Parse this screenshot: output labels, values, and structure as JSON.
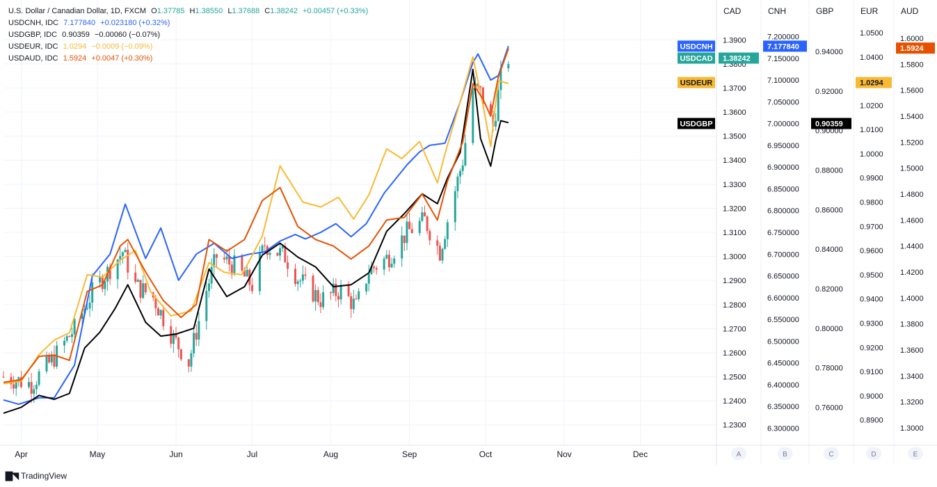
{
  "legend": {
    "main": {
      "symbol": "U.S. Dollar / Canadian Dollar, 1D, FXCM",
      "o_label": "O",
      "o": "1.37785",
      "h_label": "H",
      "h": "1.38550",
      "l_label": "L",
      "l": "1.37688",
      "c_label": "C",
      "c": "1.38242",
      "change": "+0.00457 (+0.33%)",
      "color": "#26a69a"
    },
    "overlays": [
      {
        "symbol": "USDCNH, IDC",
        "value": "7.177840",
        "change": "+0.023180 (+0.32%)",
        "color": "#2962ff"
      },
      {
        "symbol": "USDGBP, IDC",
        "value": "0.90359",
        "change": "−0.00060 (−0.07%)",
        "color": "#131722"
      },
      {
        "symbol": "USDEUR, IDC",
        "value": "1.0294",
        "change": "−0.0009 (−0.09%)",
        "color": "#f9b934"
      },
      {
        "symbol": "USDAUD, IDC",
        "value": "1.5924",
        "change": "+0.0047 (+0.30%)",
        "color": "#e65100"
      }
    ]
  },
  "brand": "TradingView",
  "colors": {
    "up": "#26a69a",
    "down": "#ef5350",
    "cnh": "#2962ff",
    "gbp": "#000000",
    "eur": "#f9b934",
    "aud": "#e65100",
    "grid": "#f0f3fa",
    "axis_text": "#131722"
  },
  "chart_data": {
    "type": "line",
    "title": "U.S. Dollar / Canadian Dollar, 1D, FXCM",
    "x_range": [
      "2022-03-25",
      "2022-12-31"
    ],
    "x_tick_labels": [
      "Apr",
      "May",
      "Jun",
      "Jul",
      "Aug",
      "Sep",
      "Oct",
      "Nov",
      "Dec"
    ],
    "x_tick_dates": [
      "2022-04-01",
      "2022-05-01",
      "2022-06-01",
      "2022-07-01",
      "2022-08-01",
      "2022-09-01",
      "2022-10-01",
      "2022-11-01",
      "2022-12-01"
    ],
    "axes": [
      {
        "id": "A",
        "name": "CAD",
        "ylim": [
          1.225,
          1.395
        ],
        "decimals": 4,
        "ticks": [
          1.23,
          1.24,
          1.25,
          1.26,
          1.27,
          1.28,
          1.29,
          1.3,
          1.31,
          1.32,
          1.33,
          1.34,
          1.35,
          1.36,
          1.37,
          1.38,
          1.39
        ]
      },
      {
        "id": "B",
        "name": "CNH",
        "ylim": [
          6.28,
          7.22
        ],
        "decimals": 6,
        "ticks": [
          6.3,
          6.35,
          6.4,
          6.45,
          6.5,
          6.55,
          6.6,
          6.65,
          6.7,
          6.75,
          6.8,
          6.85,
          6.9,
          6.95,
          7.0,
          7.05,
          7.1,
          7.15,
          7.2
        ]
      },
      {
        "id": "C",
        "name": "GBP",
        "ylim": [
          0.745,
          0.952
        ],
        "decimals": 5,
        "ticks": [
          0.76,
          0.78,
          0.8,
          0.82,
          0.84,
          0.86,
          0.88,
          0.9,
          0.92,
          0.94
        ]
      },
      {
        "id": "D",
        "name": "EUR",
        "ylim": [
          0.883,
          1.052
        ],
        "decimals": 4,
        "ticks": [
          0.89,
          0.9,
          0.91,
          0.92,
          0.93,
          0.94,
          0.95,
          0.96,
          0.97,
          0.98,
          0.99,
          1.0,
          1.01,
          1.02,
          1.03,
          1.04,
          1.05
        ]
      },
      {
        "id": "E",
        "name": "AUD",
        "ylim": [
          1.293,
          1.608
        ],
        "decimals": 4,
        "ticks": [
          1.3,
          1.32,
          1.34,
          1.36,
          1.38,
          1.4,
          1.42,
          1.44,
          1.46,
          1.48,
          1.5,
          1.52,
          1.54,
          1.56,
          1.58,
          1.6
        ]
      }
    ],
    "price_labels": [
      {
        "text": "USDCNH",
        "value": "7.177840",
        "bg": "#2962ff",
        "axis": "B"
      },
      {
        "text": "USDCAD",
        "value": "1.38242",
        "bg": "#26a69a",
        "axis": "A"
      },
      {
        "text": "USDEUR",
        "value": "1.0294",
        "bg": "#f9b934",
        "axis": "D"
      },
      {
        "text": "USDGBP",
        "value": "0.90359",
        "bg": "#000000",
        "axis": "C"
      },
      {
        "value": "1.5924",
        "bg": "#e65100",
        "axis": "E"
      }
    ],
    "candles": {
      "name": "USDCAD",
      "axis": "A",
      "date_range": [
        "2022-03-25",
        "2022-10-10"
      ],
      "close_anchors": [
        [
          "2022-03-25",
          1.25
        ],
        [
          "2022-04-05",
          1.247
        ],
        [
          "2022-04-14",
          1.258
        ],
        [
          "2022-04-22",
          1.27
        ],
        [
          "2022-04-29",
          1.285
        ],
        [
          "2022-05-06",
          1.295
        ],
        [
          "2022-05-11",
          1.302
        ],
        [
          "2022-05-16",
          1.288
        ],
        [
          "2022-05-23",
          1.283
        ],
        [
          "2022-05-31",
          1.266
        ],
        [
          "2022-06-06",
          1.256
        ],
        [
          "2022-06-13",
          1.286
        ],
        [
          "2022-06-17",
          1.3
        ],
        [
          "2022-06-24",
          1.296
        ],
        [
          "2022-07-01",
          1.288
        ],
        [
          "2022-07-06",
          1.305
        ],
        [
          "2022-07-14",
          1.3
        ],
        [
          "2022-07-19",
          1.291
        ],
        [
          "2022-07-28",
          1.282
        ],
        [
          "2022-08-05",
          1.286
        ],
        [
          "2022-08-11",
          1.279
        ],
        [
          "2022-08-16",
          1.294
        ],
        [
          "2022-08-24",
          1.3
        ],
        [
          "2022-08-31",
          1.31
        ],
        [
          "2022-09-07",
          1.315
        ],
        [
          "2022-09-13",
          1.302
        ],
        [
          "2022-09-16",
          1.315
        ],
        [
          "2022-09-22",
          1.34
        ],
        [
          "2022-09-26",
          1.37
        ],
        [
          "2022-09-29",
          1.368
        ],
        [
          "2022-10-04",
          1.354
        ],
        [
          "2022-10-07",
          1.374
        ],
        [
          "2022-10-10",
          1.3824
        ]
      ]
    },
    "series": [
      {
        "name": "USDCNH",
        "axis": "B",
        "color": "#2962ff",
        "points": [
          [
            "2022-03-25",
            6.365
          ],
          [
            "2022-03-31",
            6.355
          ],
          [
            "2022-04-08",
            6.37
          ],
          [
            "2022-04-14",
            6.37
          ],
          [
            "2022-04-22",
            6.445
          ],
          [
            "2022-04-29",
            6.65
          ],
          [
            "2022-05-06",
            6.7
          ],
          [
            "2022-05-12",
            6.815
          ],
          [
            "2022-05-20",
            6.69
          ],
          [
            "2022-05-26",
            6.76
          ],
          [
            "2022-06-02",
            6.64
          ],
          [
            "2022-06-09",
            6.7
          ],
          [
            "2022-06-16",
            6.725
          ],
          [
            "2022-06-23",
            6.69
          ],
          [
            "2022-06-30",
            6.7
          ],
          [
            "2022-07-06",
            6.705
          ],
          [
            "2022-07-12",
            6.73
          ],
          [
            "2022-07-18",
            6.745
          ],
          [
            "2022-07-22",
            6.735
          ],
          [
            "2022-07-28",
            6.75
          ],
          [
            "2022-08-03",
            6.77
          ],
          [
            "2022-08-09",
            6.74
          ],
          [
            "2022-08-15",
            6.77
          ],
          [
            "2022-08-22",
            6.84
          ],
          [
            "2022-08-31",
            6.905
          ],
          [
            "2022-09-05",
            6.935
          ],
          [
            "2022-09-09",
            6.95
          ],
          [
            "2022-09-15",
            6.955
          ],
          [
            "2022-09-21",
            7.05
          ],
          [
            "2022-09-26",
            7.14
          ],
          [
            "2022-09-28",
            7.16
          ],
          [
            "2022-10-03",
            7.1
          ],
          [
            "2022-10-06",
            7.11
          ],
          [
            "2022-10-10",
            7.178
          ]
        ]
      },
      {
        "name": "USDGBP",
        "axis": "C",
        "color": "#000000",
        "points": [
          [
            "2022-03-25",
            0.757
          ],
          [
            "2022-04-01",
            0.76
          ],
          [
            "2022-04-08",
            0.766
          ],
          [
            "2022-04-14",
            0.764
          ],
          [
            "2022-04-20",
            0.767
          ],
          [
            "2022-04-26",
            0.79
          ],
          [
            "2022-05-02",
            0.798
          ],
          [
            "2022-05-08",
            0.81
          ],
          [
            "2022-05-13",
            0.822
          ],
          [
            "2022-05-20",
            0.803
          ],
          [
            "2022-05-26",
            0.796
          ],
          [
            "2022-06-01",
            0.797
          ],
          [
            "2022-06-08",
            0.8
          ],
          [
            "2022-06-14",
            0.83
          ],
          [
            "2022-06-21",
            0.816
          ],
          [
            "2022-06-28",
            0.821
          ],
          [
            "2022-07-05",
            0.837
          ],
          [
            "2022-07-12",
            0.843
          ],
          [
            "2022-07-19",
            0.836
          ],
          [
            "2022-07-26",
            0.831
          ],
          [
            "2022-08-02",
            0.821
          ],
          [
            "2022-08-09",
            0.822
          ],
          [
            "2022-08-16",
            0.828
          ],
          [
            "2022-08-23",
            0.849
          ],
          [
            "2022-08-30",
            0.858
          ],
          [
            "2022-09-06",
            0.868
          ],
          [
            "2022-09-12",
            0.863
          ],
          [
            "2022-09-16",
            0.876
          ],
          [
            "2022-09-21",
            0.889
          ],
          [
            "2022-09-26",
            0.931
          ],
          [
            "2022-09-29",
            0.896
          ],
          [
            "2022-10-03",
            0.882
          ],
          [
            "2022-10-05",
            0.895
          ],
          [
            "2022-10-07",
            0.905
          ],
          [
            "2022-10-10",
            0.904
          ]
        ]
      },
      {
        "name": "USDEUR",
        "axis": "D",
        "color": "#f9b934",
        "points": [
          [
            "2022-03-25",
            0.905
          ],
          [
            "2022-04-01",
            0.906
          ],
          [
            "2022-04-08",
            0.917
          ],
          [
            "2022-04-14",
            0.923
          ],
          [
            "2022-04-20",
            0.926
          ],
          [
            "2022-04-27",
            0.95
          ],
          [
            "2022-05-03",
            0.949
          ],
          [
            "2022-05-10",
            0.956
          ],
          [
            "2022-05-16",
            0.96
          ],
          [
            "2022-05-22",
            0.943
          ],
          [
            "2022-05-30",
            0.933
          ],
          [
            "2022-06-07",
            0.935
          ],
          [
            "2022-06-14",
            0.955
          ],
          [
            "2022-06-20",
            0.951
          ],
          [
            "2022-06-27",
            0.95
          ],
          [
            "2022-07-05",
            0.966
          ],
          [
            "2022-07-12",
            0.995
          ],
          [
            "2022-07-15",
            0.99
          ],
          [
            "2022-07-21",
            0.98
          ],
          [
            "2022-07-28",
            0.978
          ],
          [
            "2022-08-04",
            0.982
          ],
          [
            "2022-08-10",
            0.973
          ],
          [
            "2022-08-16",
            0.983
          ],
          [
            "2022-08-23",
            1.002
          ],
          [
            "2022-08-29",
            0.998
          ],
          [
            "2022-09-05",
            1.005
          ],
          [
            "2022-09-12",
            0.988
          ],
          [
            "2022-09-15",
            1.0
          ],
          [
            "2022-09-22",
            1.025
          ],
          [
            "2022-09-26",
            1.04
          ],
          [
            "2022-09-30",
            1.02
          ],
          [
            "2022-10-03",
            1.003
          ],
          [
            "2022-10-06",
            1.03
          ],
          [
            "2022-10-10",
            1.029
          ]
        ]
      },
      {
        "name": "USDAUD",
        "axis": "E",
        "color": "#e65100",
        "points": [
          [
            "2022-03-25",
            1.335
          ],
          [
            "2022-04-01",
            1.337
          ],
          [
            "2022-04-08",
            1.355
          ],
          [
            "2022-04-14",
            1.356
          ],
          [
            "2022-04-20",
            1.352
          ],
          [
            "2022-04-27",
            1.405
          ],
          [
            "2022-05-03",
            1.41
          ],
          [
            "2022-05-10",
            1.44
          ],
          [
            "2022-05-13",
            1.445
          ],
          [
            "2022-05-20",
            1.42
          ],
          [
            "2022-05-27",
            1.398
          ],
          [
            "2022-06-03",
            1.385
          ],
          [
            "2022-06-09",
            1.395
          ],
          [
            "2022-06-14",
            1.445
          ],
          [
            "2022-06-21",
            1.436
          ],
          [
            "2022-06-28",
            1.445
          ],
          [
            "2022-07-05",
            1.475
          ],
          [
            "2022-07-12",
            1.485
          ],
          [
            "2022-07-19",
            1.455
          ],
          [
            "2022-07-26",
            1.445
          ],
          [
            "2022-08-02",
            1.44
          ],
          [
            "2022-08-09",
            1.43
          ],
          [
            "2022-08-16",
            1.44
          ],
          [
            "2022-08-23",
            1.46
          ],
          [
            "2022-08-30",
            1.462
          ],
          [
            "2022-09-06",
            1.48
          ],
          [
            "2022-09-12",
            1.46
          ],
          [
            "2022-09-16",
            1.49
          ],
          [
            "2022-09-22",
            1.52
          ],
          [
            "2022-09-26",
            1.565
          ],
          [
            "2022-09-30",
            1.553
          ],
          [
            "2022-10-03",
            1.54
          ],
          [
            "2022-10-06",
            1.57
          ],
          [
            "2022-10-10",
            1.592
          ]
        ]
      }
    ]
  }
}
